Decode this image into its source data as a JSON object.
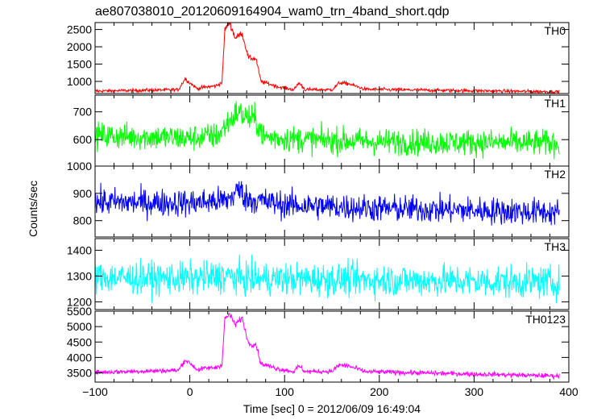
{
  "chart_data": {
    "type": "line",
    "title": "ae807038010_20120609164904_wam0_trn_4band_short.qdp",
    "xlabel": "Time [sec] 0 = 2012/06/09 16:49:04",
    "ylabel": "Counts/sec",
    "xlim": [
      -100,
      390
    ],
    "x_ticks": [
      -100,
      0,
      100,
      200,
      300,
      400
    ],
    "x_tick_labels": [
      "−100",
      "0",
      "100",
      "200",
      "300",
      "400"
    ],
    "grid": false,
    "legend": "none",
    "panels": [
      {
        "name": "TH0",
        "color": "#ff0000",
        "ylim": [
          650,
          2700
        ],
        "y_ticks": [
          1000,
          1500,
          2000,
          2500
        ],
        "y_tick_labels": [
          "1000",
          "1500",
          "2000",
          "2500"
        ],
        "baseline": 720,
        "noise": 35,
        "profile": [
          [
            -100,
            720
          ],
          [
            -12,
            760
          ],
          [
            -5,
            1080
          ],
          [
            0,
            960
          ],
          [
            8,
            790
          ],
          [
            15,
            830
          ],
          [
            28,
            870
          ],
          [
            34,
            980
          ],
          [
            37,
            2500
          ],
          [
            42,
            2700
          ],
          [
            48,
            2250
          ],
          [
            55,
            2400
          ],
          [
            62,
            1680
          ],
          [
            70,
            1650
          ],
          [
            75,
            1000
          ],
          [
            95,
            830
          ],
          [
            110,
            760
          ],
          [
            115,
            960
          ],
          [
            122,
            760
          ],
          [
            150,
            760
          ],
          [
            158,
            960
          ],
          [
            168,
            930
          ],
          [
            185,
            770
          ],
          [
            390,
            700
          ]
        ]
      },
      {
        "name": "TH1",
        "color": "#00ff00",
        "ylim": [
          505,
          760
        ],
        "y_ticks": [
          600,
          700
        ],
        "y_tick_labels": [
          "600",
          "700"
        ],
        "baseline": 605,
        "noise": 34,
        "profile": [
          [
            -100,
            615
          ],
          [
            0,
            605
          ],
          [
            30,
            615
          ],
          [
            40,
            660
          ],
          [
            50,
            700
          ],
          [
            60,
            680
          ],
          [
            70,
            670
          ],
          [
            78,
            610
          ],
          [
            120,
            600
          ],
          [
            200,
            592
          ],
          [
            390,
            588
          ]
        ]
      },
      {
        "name": "TH2",
        "color": "#0000ff",
        "ylim": [
          740,
          1000
        ],
        "y_ticks": [
          800,
          900,
          1000
        ],
        "y_tick_labels": [
          "800",
          "900",
          "1000"
        ],
        "baseline": 860,
        "noise": 36,
        "profile": [
          [
            -100,
            868
          ],
          [
            0,
            865
          ],
          [
            40,
            875
          ],
          [
            52,
            915
          ],
          [
            60,
            880
          ],
          [
            100,
            858
          ],
          [
            200,
            845
          ],
          [
            300,
            838
          ],
          [
            390,
            830
          ]
        ]
      },
      {
        "name": "TH3",
        "color": "#00ffff",
        "ylim": [
          1170,
          1445
        ],
        "y_ticks": [
          1200,
          1300,
          1400
        ],
        "y_tick_labels": [
          "1200",
          "1300",
          "1400"
        ],
        "baseline": 1290,
        "noise": 45,
        "profile": [
          [
            -100,
            1295
          ],
          [
            0,
            1290
          ],
          [
            40,
            1300
          ],
          [
            60,
            1290
          ],
          [
            200,
            1285
          ],
          [
            390,
            1275
          ]
        ]
      },
      {
        "name": "TH0123",
        "color": "#ff00ff",
        "ylim": [
          3200,
          5500
        ],
        "y_ticks": [
          3500,
          4000,
          4500,
          5000,
          5500
        ],
        "y_tick_labels": [
          "3500",
          "4000",
          "4500",
          "5000",
          "5500"
        ],
        "baseline": 3500,
        "noise": 55,
        "profile": [
          [
            -100,
            3520
          ],
          [
            -12,
            3580
          ],
          [
            -5,
            3920
          ],
          [
            0,
            3820
          ],
          [
            8,
            3600
          ],
          [
            15,
            3640
          ],
          [
            28,
            3680
          ],
          [
            34,
            3780
          ],
          [
            37,
            5250
          ],
          [
            42,
            5400
          ],
          [
            48,
            5050
          ],
          [
            55,
            5300
          ],
          [
            62,
            4450
          ],
          [
            70,
            4420
          ],
          [
            75,
            3800
          ],
          [
            95,
            3620
          ],
          [
            110,
            3540
          ],
          [
            115,
            3720
          ],
          [
            122,
            3540
          ],
          [
            150,
            3550
          ],
          [
            158,
            3760
          ],
          [
            168,
            3720
          ],
          [
            185,
            3540
          ],
          [
            390,
            3400
          ]
        ]
      }
    ]
  }
}
